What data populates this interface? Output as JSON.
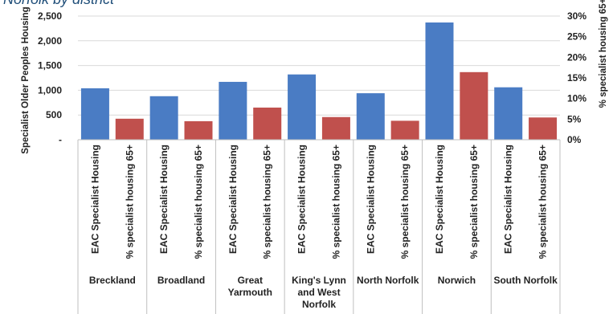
{
  "chart_data": {
    "type": "bar",
    "title": "Norfolk by district",
    "ylabel": "Specialist Older Peoples Housing",
    "y2label": "% specialist housing 65+",
    "ylim": [
      0,
      2500
    ],
    "yticks": [
      0,
      500,
      1000,
      1500,
      2000,
      2500
    ],
    "ytick_labels": [
      "-",
      "500",
      "1,000",
      "1,500",
      "2,000",
      "2,500"
    ],
    "y2lim": [
      0,
      30
    ],
    "y2ticks": [
      0,
      5,
      10,
      15,
      20,
      25,
      30
    ],
    "y2tick_labels": [
      "0%",
      "5%",
      "10%",
      "15%",
      "20%",
      "25%",
      "30%"
    ],
    "grid": true,
    "groups": [
      {
        "name": "Breckland",
        "lines": [
          "Breckland"
        ]
      },
      {
        "name": "Broadland",
        "lines": [
          "Broadland"
        ]
      },
      {
        "name": "Great Yarmouth",
        "lines": [
          "Great",
          "Yarmouth"
        ]
      },
      {
        "name": "King's Lynn and West Norfolk",
        "lines": [
          "King's Lynn",
          "and West",
          "Norfolk"
        ]
      },
      {
        "name": "North Norfolk",
        "lines": [
          "North Norfolk"
        ]
      },
      {
        "name": "Norwich",
        "lines": [
          "Norwich"
        ]
      },
      {
        "name": "South Norfolk",
        "lines": [
          "South Norfolk"
        ]
      }
    ],
    "series": [
      {
        "name": "EAC Specialist Housing",
        "axis": "left",
        "color": "#4a7cc4",
        "values": [
          1040,
          880,
          1170,
          1320,
          940,
          2370,
          1060
        ]
      },
      {
        "name": "% specialist housing 65+",
        "axis": "right",
        "color": "#c0504d",
        "values": [
          5.1,
          4.5,
          7.8,
          5.5,
          4.6,
          16.4,
          5.4
        ]
      }
    ]
  }
}
